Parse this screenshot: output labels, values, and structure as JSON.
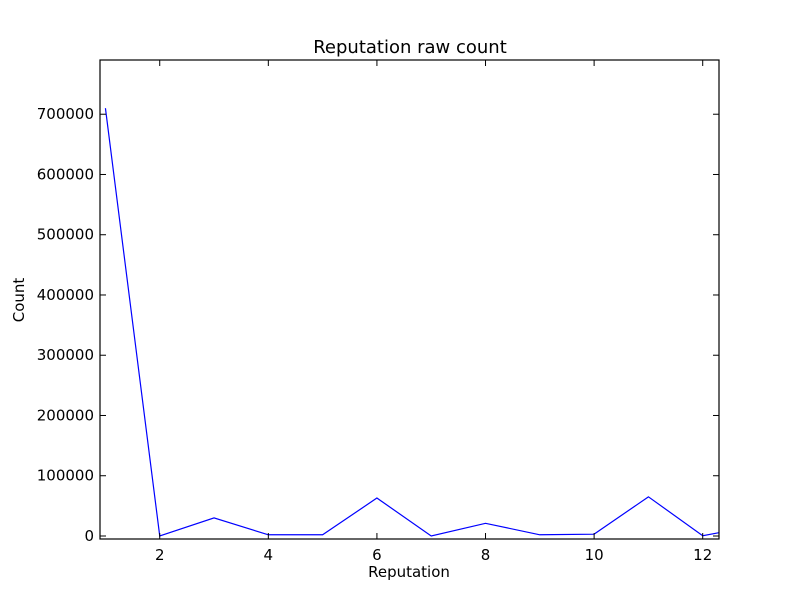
{
  "chart_data": {
    "type": "line",
    "title": "Reputation raw count",
    "xlabel": "Reputation",
    "ylabel": "Count",
    "xlim": [
      0.9,
      12.3
    ],
    "ylim": [
      -5000,
      790000
    ],
    "x_ticks": [
      2,
      4,
      6,
      8,
      10,
      12
    ],
    "y_ticks": [
      0,
      100000,
      200000,
      300000,
      400000,
      500000,
      600000,
      700000
    ],
    "grid": false,
    "series": [
      {
        "color": "#0000ff",
        "x": [
          1,
          2,
          3,
          4,
          5,
          6,
          7,
          8,
          9,
          10,
          11,
          12,
          12.3
        ],
        "y": [
          710000,
          0,
          30000,
          2000,
          2000,
          63000,
          0,
          21000,
          2000,
          3000,
          65000,
          500,
          5500
        ]
      }
    ]
  }
}
